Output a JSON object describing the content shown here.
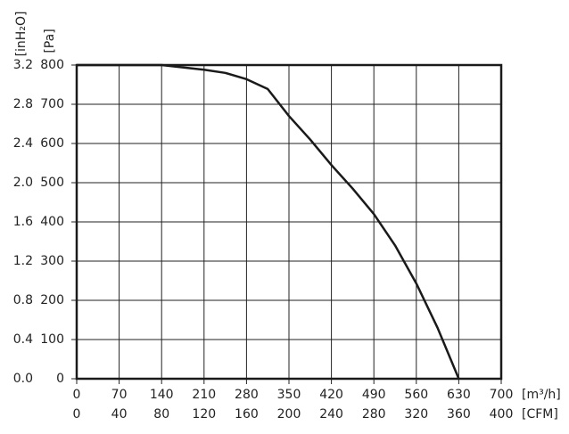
{
  "chart_data": {
    "type": "line",
    "x_label": "[m³/h]",
    "x2_label": "[CFM]",
    "y_label": "[Pa]",
    "y2_label": "[inH₂O]",
    "x": [
      0,
      70,
      140,
      210,
      245,
      280,
      315,
      350,
      385,
      420,
      455,
      490,
      525,
      560,
      595,
      630
    ],
    "series": [
      {
        "color": "#1a1a1a",
        "values": [
          800,
          800,
          800,
          788,
          780,
          764,
          739,
          670,
          610,
          545,
          485,
          420,
          340,
          243,
          130,
          0
        ]
      }
    ],
    "xlim": [
      0,
      700
    ],
    "xticks": [
      0,
      70,
      140,
      210,
      280,
      350,
      420,
      490,
      560,
      630,
      700
    ],
    "x2lim": [
      0,
      400
    ],
    "x2ticks": [
      0,
      40,
      80,
      120,
      160,
      200,
      240,
      280,
      320,
      360,
      400
    ],
    "ylim": [
      0,
      800
    ],
    "yticks": [
      0,
      100,
      200,
      300,
      400,
      500,
      600,
      700,
      800
    ],
    "y2lim": [
      0,
      3.2
    ],
    "y2ticks": [
      {
        "value": 0,
        "label": "0.0"
      },
      0.4,
      0.8,
      1.2,
      1.6,
      {
        "value": 2,
        "label": "2.0"
      },
      2.4,
      2.8,
      3.2
    ],
    "grid": true
  }
}
